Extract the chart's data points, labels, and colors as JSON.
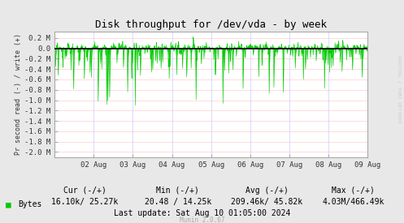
{
  "title": "Disk throughput for /dev/vda - by week",
  "ylabel": "Pr second read (-) / write (+)",
  "bg_color": "#E8E8E8",
  "plot_bg_color": "#FFFFFF",
  "grid_color_h": "#FFCCCC",
  "grid_color_v": "#CCCCFF",
  "border_color": "#AAAAAA",
  "line_color": "#00CC00",
  "fill_color": "#00CC00",
  "zero_line_color": "#000000",
  "ylim_min": -2100000,
  "ylim_max": 330000,
  "ytick_vals_M": [
    0.2,
    0.0,
    -0.2,
    -0.4,
    -0.6,
    -0.8,
    -1.0,
    -1.2,
    -1.4,
    -1.6,
    -1.8,
    -2.0
  ],
  "ytick_labels": [
    "0.2 M",
    "0.0",
    "-0.2 M",
    "-0.4 M",
    "-0.6 M",
    "-0.8 M",
    "-1.0 M",
    "-1.2 M",
    "-1.4 M",
    "-1.6 M",
    "-1.8 M",
    "-2.0 M"
  ],
  "xtick_labels": [
    "02 Aug",
    "03 Aug",
    "04 Aug",
    "05 Aug",
    "06 Aug",
    "07 Aug",
    "08 Aug",
    "09 Aug"
  ],
  "legend_label": "Bytes",
  "legend_color": "#00CC00",
  "cur_label": "Cur (-/+)",
  "cur_val": "16.10k/ 25.27k",
  "min_label": "Min (-/+)",
  "min_val": "20.48 / 14.25k",
  "avg_label": "Avg (-/+)",
  "avg_val": "209.46k/ 45.82k",
  "max_label": "Max (-/+)",
  "max_val": "4.03M/466.49k",
  "last_update": "Last update: Sat Aug 10 01:05:00 2024",
  "munin_version": "Munin 2.0.67",
  "rrdtool_label": "RRDTOOL / TOBI OETIKER",
  "seed": 42,
  "n_points": 1200
}
